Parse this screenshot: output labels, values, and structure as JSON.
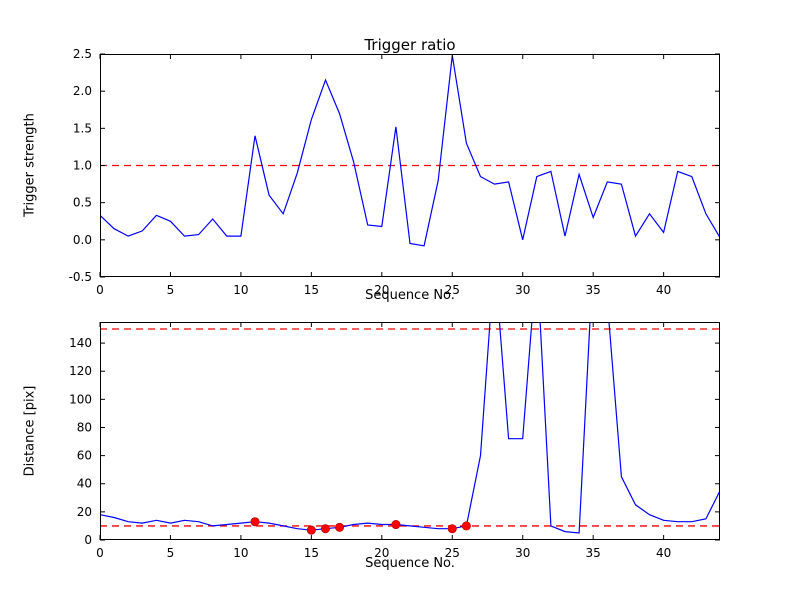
{
  "colors": {
    "line": "#0000ff",
    "threshold": "#ff0000",
    "marker": "#ff0000",
    "frame": "#000000",
    "background": "#ffffff"
  },
  "chart_data": [
    {
      "type": "line",
      "title": "Trigger ratio",
      "xlabel": "Sequence No.",
      "ylabel": "Trigger strength",
      "xlim": [
        0,
        44
      ],
      "ylim": [
        -0.5,
        2.5
      ],
      "xticks": [
        0,
        5,
        10,
        15,
        20,
        25,
        30,
        35,
        40
      ],
      "xtick_labels": [
        "0",
        "5",
        "10",
        "15",
        "20",
        "25",
        "30",
        "35",
        "40"
      ],
      "yticks": [
        -0.5,
        0.0,
        0.5,
        1.0,
        1.5,
        2.0,
        2.5
      ],
      "ytick_labels": [
        "-0.5",
        "0.0",
        "0.5",
        "1.0",
        "1.5",
        "2.0",
        "2.5"
      ],
      "hlines": [
        1.0
      ],
      "x": [
        0,
        1,
        2,
        3,
        4,
        5,
        6,
        7,
        8,
        9,
        10,
        11,
        12,
        13,
        14,
        15,
        16,
        17,
        18,
        19,
        20,
        21,
        22,
        23,
        24,
        25,
        26,
        27,
        28,
        29,
        30,
        31,
        32,
        33,
        34,
        35,
        36,
        37,
        38,
        39,
        40,
        41,
        42,
        43,
        44
      ],
      "y": [
        0.33,
        0.15,
        0.05,
        0.12,
        0.33,
        0.25,
        0.05,
        0.07,
        0.28,
        0.05,
        0.05,
        1.4,
        0.6,
        0.35,
        0.9,
        1.62,
        2.15,
        1.7,
        1.05,
        0.2,
        0.18,
        1.52,
        -0.05,
        -0.08,
        0.8,
        2.48,
        1.3,
        0.85,
        0.75,
        0.78,
        0.0,
        0.85,
        0.92,
        0.05,
        0.88,
        0.3,
        0.78,
        0.75,
        0.05,
        0.35,
        0.1,
        0.92,
        0.85,
        0.35,
        0.03
      ]
    },
    {
      "type": "line",
      "title": "",
      "xlabel": "Sequence No.",
      "ylabel": "Distance [pix]",
      "xlim": [
        0,
        44
      ],
      "ylim": [
        0,
        155
      ],
      "xticks": [
        0,
        5,
        10,
        15,
        20,
        25,
        30,
        35,
        40
      ],
      "xtick_labels": [
        "0",
        "5",
        "10",
        "15",
        "20",
        "25",
        "30",
        "35",
        "40"
      ],
      "yticks": [
        0,
        20,
        40,
        60,
        80,
        100,
        120,
        140
      ],
      "ytick_labels": [
        "0",
        "20",
        "40",
        "60",
        "80",
        "100",
        "120",
        "140"
      ],
      "hlines": [
        150,
        10
      ],
      "x": [
        0,
        1,
        2,
        3,
        4,
        5,
        6,
        7,
        8,
        9,
        10,
        11,
        12,
        13,
        14,
        15,
        16,
        17,
        18,
        19,
        20,
        21,
        22,
        23,
        24,
        25,
        26,
        27,
        28,
        29,
        30,
        31,
        32,
        33,
        34,
        35,
        36,
        37,
        38,
        39,
        40,
        41,
        42,
        43,
        44
      ],
      "y": [
        18,
        16,
        13,
        12,
        14,
        12,
        14,
        13,
        10,
        11,
        12,
        13,
        12,
        10,
        8,
        7,
        8,
        9,
        11,
        12,
        11,
        11,
        10,
        9,
        8,
        8,
        10,
        60,
        200,
        72,
        72,
        200,
        10,
        6,
        5,
        200,
        170,
        45,
        25,
        18,
        14,
        13,
        13,
        15,
        35
      ],
      "markers": {
        "x": [
          11,
          15,
          16,
          17,
          21,
          25,
          26
        ],
        "y": [
          13,
          7,
          8,
          9,
          11,
          8,
          10
        ]
      }
    }
  ]
}
